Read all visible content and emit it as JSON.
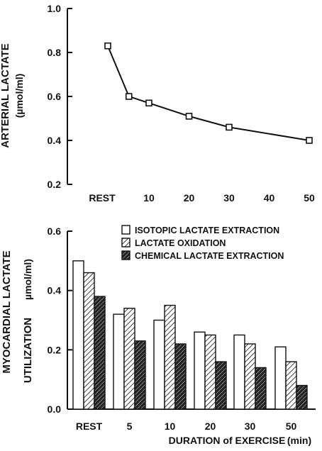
{
  "chart_data": [
    {
      "type": "line",
      "ylabel": "ARTERIAL LACTATE",
      "ylabel_unit": "(µmol/ml)",
      "categories": [
        "REST",
        "10",
        "20",
        "30",
        "40",
        "50"
      ],
      "points": [
        {
          "x": "REST",
          "y": 0.83
        },
        {
          "x": 5,
          "y": 0.6
        },
        {
          "x": 10,
          "y": 0.57
        },
        {
          "x": 20,
          "y": 0.51
        },
        {
          "x": 30,
          "y": 0.46
        },
        {
          "x": 50,
          "y": 0.4
        }
      ],
      "ylim": [
        0.2,
        1.0
      ],
      "yticks": [
        "0.2",
        "0.4",
        "0.6",
        "0.8",
        "1.0"
      ],
      "grid": false,
      "legend": false
    },
    {
      "type": "bar",
      "ylabel": "MYOCARDIAL LACTATE",
      "ylabel_line2": "UTILIZATION",
      "ylabel_unit": "µmol/ml)",
      "xlabel": "DURATION of EXERCISE",
      "xlabel_unit": "(min)",
      "categories": [
        "REST",
        "5",
        "10",
        "20",
        "30",
        "50"
      ],
      "series": [
        {
          "name": "ISOTOPIC LACTATE EXTRACTION",
          "values": [
            0.5,
            0.32,
            0.3,
            0.26,
            0.25,
            0.21
          ],
          "fill": "white"
        },
        {
          "name": "LACTATE OXIDATION",
          "values": [
            0.46,
            0.34,
            0.35,
            0.25,
            0.22,
            0.16
          ],
          "fill": "hatch-light"
        },
        {
          "name": "CHEMICAL LACTATE EXTRACTION",
          "values": [
            0.38,
            0.23,
            0.22,
            0.16,
            0.14,
            0.08
          ],
          "fill": "hatch-dark"
        }
      ],
      "ylim": [
        0.0,
        0.6
      ],
      "yticks": [
        "0.0",
        "0.2",
        "0.4",
        "0.6"
      ],
      "grid": false,
      "legend_position": "top-right"
    }
  ],
  "colors": {
    "ink": "#111111",
    "background": "#ffffff"
  }
}
